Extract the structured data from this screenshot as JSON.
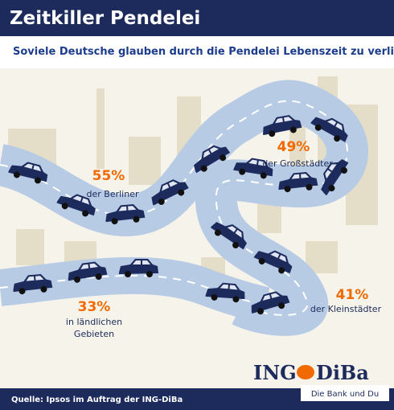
{
  "header": {
    "title": "Zeitkiller Pendelei",
    "subtitle": "Soviele Deutsche glauben durch die Pendelei Lebenszeit zu verlieren"
  },
  "callouts": [
    {
      "value": "55%",
      "label": [
        "der Berliner"
      ]
    },
    {
      "value": "49%",
      "label": [
        "der Großstädter"
      ]
    },
    {
      "value": "41%",
      "label": [
        "der Kleinstädter"
      ]
    },
    {
      "value": "33%",
      "label": [
        "in ländlichen",
        "Gebieten"
      ]
    }
  ],
  "logo": {
    "left": "ING",
    "right": "DiBa",
    "slogan": "Die Bank und Du"
  },
  "footer": {
    "source": "Quelle: Ipsos im Auftrag der ING-DiBa"
  }
}
